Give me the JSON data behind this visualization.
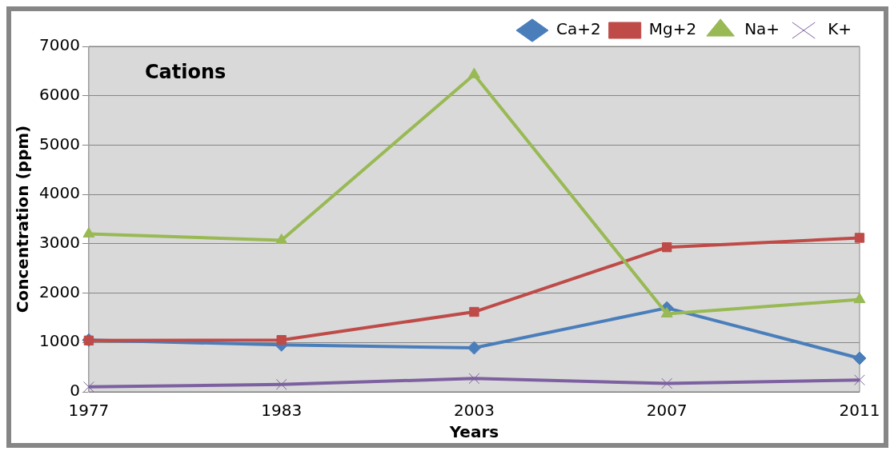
{
  "chart_data": {
    "type": "line",
    "xlabel": "Years",
    "ylabel": "Concentration (ppm)",
    "annotations": [
      "Cations"
    ],
    "categories": [
      "1977",
      "1983",
      "2003",
      "2007",
      "2011"
    ],
    "series": [
      {
        "name": "Ca+2",
        "color": "#4a7ebb",
        "marker": "diamond",
        "values": [
          1050,
          950,
          890,
          1700,
          680
        ]
      },
      {
        "name": "Mg+2",
        "color": "#be4b48",
        "marker": "square",
        "values": [
          1040,
          1050,
          1620,
          2930,
          3120
        ]
      },
      {
        "name": "Na+",
        "color": "#98b954",
        "marker": "triangle",
        "values": [
          3200,
          3070,
          6430,
          1580,
          1870
        ]
      },
      {
        "name": "K+",
        "color": "#7d60a0",
        "marker": "cross",
        "values": [
          100,
          150,
          270,
          170,
          240
        ]
      }
    ],
    "ylim": [
      0,
      7000
    ],
    "yticks": [
      0,
      1000,
      2000,
      3000,
      4000,
      5000,
      6000,
      7000
    ],
    "grid": "y",
    "legend": "top right"
  }
}
